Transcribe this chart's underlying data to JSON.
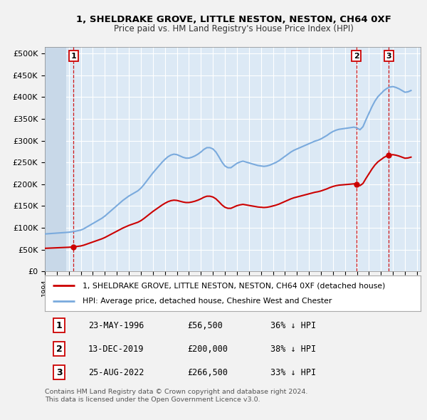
{
  "title_line1": "1, SHELDRAKE GROVE, LITTLE NESTON, NESTON, CH64 0XF",
  "title_line2": "Price paid vs. HM Land Registry's House Price Index (HPI)",
  "ytick_vals": [
    0,
    50000,
    100000,
    150000,
    200000,
    250000,
    300000,
    350000,
    400000,
    450000,
    500000
  ],
  "xlim": [
    1994.0,
    2025.3
  ],
  "ylim": [
    0,
    515000
  ],
  "background_color": "#f2f2f2",
  "plot_bg_color": "#dce9f5",
  "grid_color": "#ffffff",
  "hpi_line_color": "#7aaadd",
  "price_line_color": "#cc0000",
  "sale_marker_color": "#cc0000",
  "sale1_x": 1996.39,
  "sale1_y": 56500,
  "sale2_x": 2019.95,
  "sale2_y": 200000,
  "sale3_x": 2022.65,
  "sale3_y": 266500,
  "legend_label1": "1, SHELDRAKE GROVE, LITTLE NESTON, NESTON, CH64 0XF (detached house)",
  "legend_label2": "HPI: Average price, detached house, Cheshire West and Chester",
  "table_rows": [
    [
      "1",
      "23-MAY-1996",
      "£56,500",
      "36% ↓ HPI"
    ],
    [
      "2",
      "13-DEC-2019",
      "£200,000",
      "38% ↓ HPI"
    ],
    [
      "3",
      "25-AUG-2022",
      "£266,500",
      "33% ↓ HPI"
    ]
  ],
  "footer_text": "Contains HM Land Registry data © Crown copyright and database right 2024.\nThis data is licensed under the Open Government Licence v3.0.",
  "hpi_data_x": [
    1994.0,
    1994.25,
    1994.5,
    1994.75,
    1995.0,
    1995.25,
    1995.5,
    1995.75,
    1996.0,
    1996.25,
    1996.5,
    1996.75,
    1997.0,
    1997.25,
    1997.5,
    1997.75,
    1998.0,
    1998.25,
    1998.5,
    1998.75,
    1999.0,
    1999.25,
    1999.5,
    1999.75,
    2000.0,
    2000.25,
    2000.5,
    2000.75,
    2001.0,
    2001.25,
    2001.5,
    2001.75,
    2002.0,
    2002.25,
    2002.5,
    2002.75,
    2003.0,
    2003.25,
    2003.5,
    2003.75,
    2004.0,
    2004.25,
    2004.5,
    2004.75,
    2005.0,
    2005.25,
    2005.5,
    2005.75,
    2006.0,
    2006.25,
    2006.5,
    2006.75,
    2007.0,
    2007.25,
    2007.5,
    2007.75,
    2008.0,
    2008.25,
    2008.5,
    2008.75,
    2009.0,
    2009.25,
    2009.5,
    2009.75,
    2010.0,
    2010.25,
    2010.5,
    2010.75,
    2011.0,
    2011.25,
    2011.5,
    2011.75,
    2012.0,
    2012.25,
    2012.5,
    2012.75,
    2013.0,
    2013.25,
    2013.5,
    2013.75,
    2014.0,
    2014.25,
    2014.5,
    2014.75,
    2015.0,
    2015.25,
    2015.5,
    2015.75,
    2016.0,
    2016.25,
    2016.5,
    2016.75,
    2017.0,
    2017.25,
    2017.5,
    2017.75,
    2018.0,
    2018.25,
    2018.5,
    2018.75,
    2019.0,
    2019.25,
    2019.5,
    2019.75,
    2020.0,
    2020.25,
    2020.5,
    2020.75,
    2021.0,
    2021.25,
    2021.5,
    2021.75,
    2022.0,
    2022.25,
    2022.5,
    2022.75,
    2023.0,
    2023.25,
    2023.5,
    2023.75,
    2024.0,
    2024.25,
    2024.5
  ],
  "hpi_data_y": [
    86000,
    86500,
    87000,
    87500,
    88000,
    88500,
    89000,
    89500,
    90000,
    91000,
    92000,
    93500,
    95000,
    98000,
    102000,
    106000,
    110000,
    114000,
    118000,
    122000,
    127000,
    133000,
    139000,
    145000,
    151000,
    157000,
    163000,
    168000,
    173000,
    177000,
    181000,
    185000,
    191000,
    199000,
    208000,
    217000,
    226000,
    234000,
    242000,
    250000,
    257000,
    263000,
    267000,
    269000,
    268000,
    265000,
    262000,
    260000,
    260000,
    262000,
    265000,
    269000,
    274000,
    280000,
    284000,
    284000,
    281000,
    274000,
    263000,
    251000,
    242000,
    238000,
    238000,
    243000,
    248000,
    251000,
    253000,
    251000,
    249000,
    247000,
    245000,
    243000,
    242000,
    241000,
    242000,
    244000,
    247000,
    250000,
    254000,
    259000,
    264000,
    269000,
    274000,
    278000,
    281000,
    284000,
    287000,
    290000,
    293000,
    296000,
    299000,
    301000,
    304000,
    308000,
    312000,
    317000,
    321000,
    324000,
    326000,
    327000,
    328000,
    329000,
    330000,
    331000,
    329000,
    325000,
    332000,
    348000,
    363000,
    378000,
    391000,
    401000,
    408000,
    415000,
    420000,
    423000,
    424000,
    422000,
    419000,
    415000,
    411000,
    412000,
    415000
  ],
  "vline1_x": 1996.39,
  "vline2_x": 2019.95,
  "vline3_x": 2022.65
}
